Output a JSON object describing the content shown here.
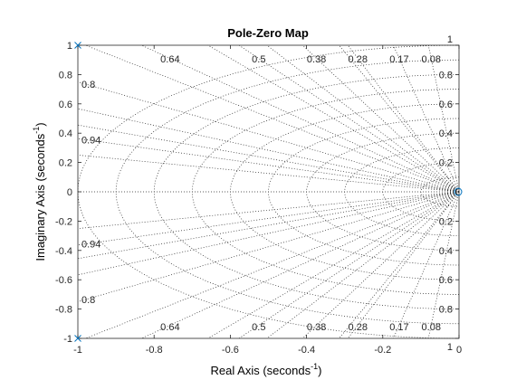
{
  "chart_data": {
    "type": "scatter",
    "title": "Pole-Zero Map",
    "xlabel_text": "Real Axis (seconds",
    "ylabel_text": "Imaginary Axis (seconds",
    "unit_exponent": "-1",
    "unit_close": ")",
    "xlim": [
      -1,
      0
    ],
    "ylim": [
      -1,
      1
    ],
    "xticks": [
      -1,
      -0.8,
      -0.6,
      -0.4,
      -0.2,
      0
    ],
    "xtick_labels": [
      "-1",
      "-0.8",
      "-0.6",
      "-0.4",
      "-0.2",
      "0"
    ],
    "yticks": [
      -1,
      -0.8,
      -0.6,
      -0.4,
      -0.2,
      0,
      0.2,
      0.4,
      0.6,
      0.8,
      1
    ],
    "ytick_labels": [
      "-1",
      "-0.8",
      "-0.6",
      "-0.4",
      "-0.2",
      "0",
      "0.2",
      "0.4",
      "0.6",
      "0.8",
      "1"
    ],
    "grid": true,
    "poles": [
      {
        "x": -1,
        "y": 1
      },
      {
        "x": -1,
        "y": -1
      }
    ],
    "zeros": [
      {
        "x": 0,
        "y": 0
      }
    ],
    "damping_lines": [
      0.08,
      0.17,
      0.28,
      0.38,
      0.5,
      0.64,
      0.8,
      0.94
    ],
    "damping_labels": [
      "0.08",
      "0.17",
      "0.28",
      "0.38",
      "0.5",
      "0.64",
      "0.8",
      "0.94"
    ],
    "top_row_damping": [
      "0.64",
      "0.5",
      "0.38",
      "0.28",
      "0.17",
      "0.08"
    ],
    "side_damping": [
      "0.8",
      "0.94"
    ],
    "frequency_circles": [
      0.2,
      0.4,
      0.6,
      0.8,
      1
    ],
    "frequency_labels": [
      "0.2",
      "0.4",
      "0.6",
      "0.8",
      "1"
    ],
    "marker_color": "#0072bd",
    "grid_color": "#262626"
  }
}
